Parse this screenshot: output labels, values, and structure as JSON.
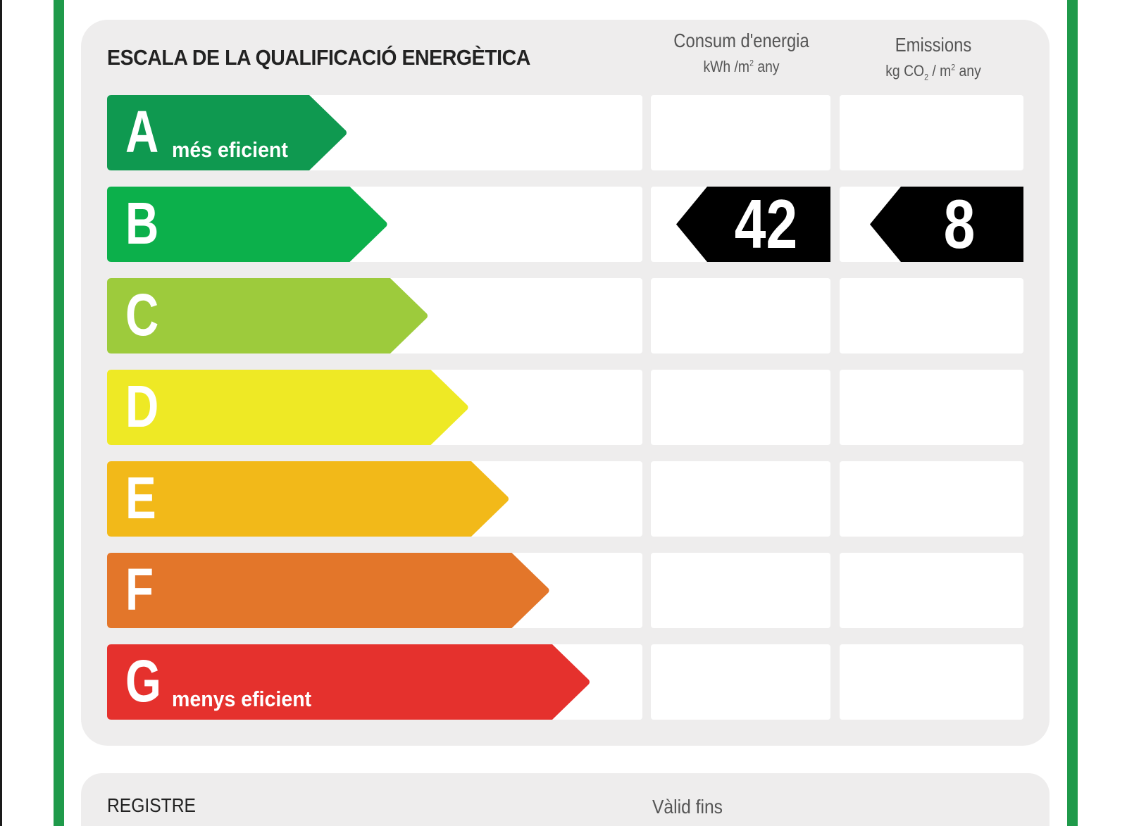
{
  "header": {
    "title": "ESCALA DE LA QUALIFICACIÓ ENERGÈTICA",
    "energy_col": {
      "title": "Consum d'energia",
      "unit_prefix": "kWh /m",
      "unit_sup": "2",
      "unit_suffix": " any"
    },
    "emissions_col": {
      "title": "Emissions",
      "unit_prefix": "kg CO",
      "unit_sub": "2",
      "unit_mid": " / m",
      "unit_sup": "2",
      "unit_suffix": " any"
    }
  },
  "classes": [
    {
      "letter": "A",
      "sublabel": "més eficient",
      "color": "#0f9950"
    },
    {
      "letter": "B",
      "sublabel": "",
      "color": "#0cb04b"
    },
    {
      "letter": "C",
      "sublabel": "",
      "color": "#9dcb3c"
    },
    {
      "letter": "D",
      "sublabel": "",
      "color": "#eee925"
    },
    {
      "letter": "E",
      "sublabel": "",
      "color": "#f2b919"
    },
    {
      "letter": "F",
      "sublabel": "",
      "color": "#e3762a"
    },
    {
      "letter": "G",
      "sublabel": "menys eficient",
      "color": "#e5312d"
    }
  ],
  "rating": {
    "class": "B",
    "energy_value": "42",
    "emissions_value": "8",
    "marker_color": "#000000"
  },
  "footer": {
    "register_label": "REGISTRE",
    "valid_label": "Vàlid fins"
  }
}
